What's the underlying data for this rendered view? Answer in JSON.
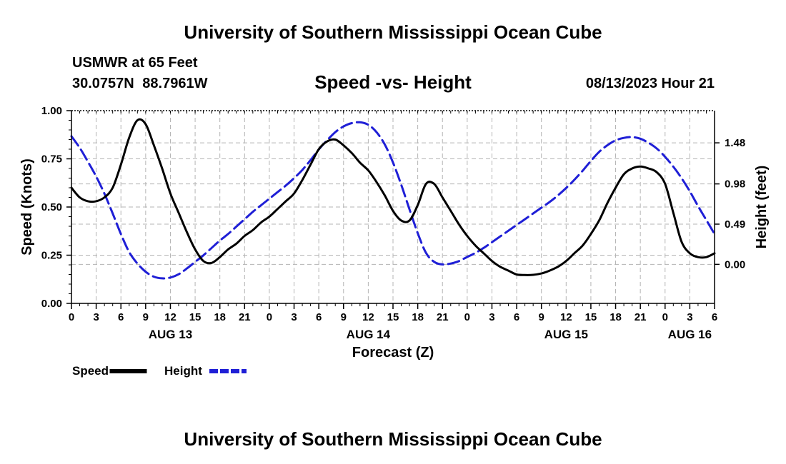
{
  "header": {
    "title": "University of Southern Mississippi Ocean Cube",
    "station": "USMWR at 65 Feet",
    "coords": "30.0757N  88.7961W",
    "plot_title": "Speed -vs- Height",
    "date": "08/13/2023 Hour 21"
  },
  "footer": {
    "title": "University of Southern Mississippi Ocean Cube"
  },
  "chart_data": {
    "type": "line",
    "xlabel": "Forecast (Z)",
    "ylabel": "Speed (Knots)",
    "y2label": "Height (feet)",
    "x_range": [
      0,
      78
    ],
    "x_ticks": [
      {
        "x": 0,
        "label": "0"
      },
      {
        "x": 3,
        "label": "3"
      },
      {
        "x": 6,
        "label": "6"
      },
      {
        "x": 9,
        "label": "9"
      },
      {
        "x": 12,
        "label": "12"
      },
      {
        "x": 15,
        "label": "15"
      },
      {
        "x": 18,
        "label": "18"
      },
      {
        "x": 21,
        "label": "21"
      },
      {
        "x": 24,
        "label": "0"
      },
      {
        "x": 27,
        "label": "3"
      },
      {
        "x": 30,
        "label": "6"
      },
      {
        "x": 33,
        "label": "9"
      },
      {
        "x": 36,
        "label": "12"
      },
      {
        "x": 39,
        "label": "15"
      },
      {
        "x": 42,
        "label": "18"
      },
      {
        "x": 45,
        "label": "21"
      },
      {
        "x": 48,
        "label": "0"
      },
      {
        "x": 51,
        "label": "3"
      },
      {
        "x": 54,
        "label": "6"
      },
      {
        "x": 57,
        "label": "9"
      },
      {
        "x": 60,
        "label": "12"
      },
      {
        "x": 63,
        "label": "15"
      },
      {
        "x": 66,
        "label": "18"
      },
      {
        "x": 69,
        "label": "21"
      },
      {
        "x": 72,
        "label": "0"
      },
      {
        "x": 75,
        "label": "3"
      },
      {
        "x": 78,
        "label": "6"
      }
    ],
    "date_labels": [
      {
        "x": 12,
        "label": "AUG 13"
      },
      {
        "x": 36,
        "label": "AUG 14"
      },
      {
        "x": 60,
        "label": "AUG 15"
      },
      {
        "x": 75,
        "label": "AUG 16"
      }
    ],
    "y_range": [
      0,
      1
    ],
    "y_ticks": [
      "0.00",
      "0.25",
      "0.50",
      "0.75",
      "1.00"
    ],
    "y2_range": [
      -0.475,
      1.872
    ],
    "y2_ticks": [
      {
        "value": 0.0,
        "label": "0.00"
      },
      {
        "value": 0.49,
        "label": "0.49"
      },
      {
        "value": 0.98,
        "label": "0.98"
      },
      {
        "value": 1.48,
        "label": "1.48"
      }
    ],
    "series": [
      {
        "name": "Speed",
        "axis": "left",
        "color": "#000000",
        "dash": "solid",
        "x": [
          0,
          1,
          2,
          3,
          4,
          5,
          6,
          7,
          8,
          9,
          10,
          11,
          12,
          13,
          14,
          15,
          16,
          17,
          18,
          19,
          20,
          21,
          22,
          23,
          24,
          25,
          26,
          27,
          28,
          29,
          30,
          31,
          32,
          33,
          34,
          35,
          36,
          37,
          38,
          39,
          40,
          41,
          42,
          43,
          44,
          45,
          46,
          47,
          48,
          49,
          50,
          51,
          52,
          53,
          54,
          55,
          56,
          57,
          58,
          59,
          60,
          61,
          62,
          63,
          64,
          65,
          66,
          67,
          68,
          69,
          70,
          71,
          72,
          73,
          74,
          75,
          76,
          77,
          78
        ],
        "values": [
          0.6,
          0.55,
          0.53,
          0.53,
          0.55,
          0.6,
          0.72,
          0.86,
          0.95,
          0.93,
          0.82,
          0.7,
          0.57,
          0.47,
          0.37,
          0.28,
          0.22,
          0.21,
          0.24,
          0.28,
          0.31,
          0.35,
          0.38,
          0.42,
          0.45,
          0.49,
          0.53,
          0.57,
          0.64,
          0.72,
          0.8,
          0.84,
          0.85,
          0.82,
          0.78,
          0.73,
          0.69,
          0.63,
          0.56,
          0.48,
          0.43,
          0.43,
          0.51,
          0.62,
          0.62,
          0.55,
          0.48,
          0.41,
          0.35,
          0.3,
          0.26,
          0.22,
          0.19,
          0.17,
          0.15,
          0.147,
          0.148,
          0.155,
          0.17,
          0.19,
          0.22,
          0.26,
          0.3,
          0.36,
          0.43,
          0.52,
          0.6,
          0.67,
          0.7,
          0.71,
          0.7,
          0.68,
          0.62,
          0.47,
          0.32,
          0.26,
          0.24,
          0.24,
          0.26
        ]
      },
      {
        "name": "Height",
        "axis": "right",
        "color": "#1f1fd6",
        "dash": "dashed",
        "x": [
          0,
          1,
          2,
          3,
          4,
          5,
          6,
          7,
          8,
          9,
          10,
          11,
          12,
          13,
          14,
          15,
          16,
          17,
          18,
          19,
          20,
          21,
          22,
          23,
          24,
          25,
          26,
          27,
          28,
          29,
          30,
          31,
          32,
          33,
          34,
          35,
          36,
          37,
          38,
          39,
          40,
          41,
          42,
          43,
          44,
          45,
          46,
          47,
          48,
          49,
          50,
          51,
          52,
          53,
          54,
          55,
          56,
          57,
          58,
          59,
          60,
          61,
          62,
          63,
          64,
          65,
          66,
          67,
          68,
          69,
          70,
          71,
          72,
          73,
          74,
          75,
          76,
          77,
          78
        ],
        "values": [
          1.56,
          1.42,
          1.25,
          1.07,
          0.86,
          0.62,
          0.37,
          0.15,
          0.01,
          -0.09,
          -0.15,
          -0.17,
          -0.16,
          -0.12,
          -0.05,
          0.03,
          0.11,
          0.2,
          0.29,
          0.37,
          0.46,
          0.55,
          0.64,
          0.72,
          0.8,
          0.88,
          0.96,
          1.05,
          1.15,
          1.27,
          1.4,
          1.51,
          1.61,
          1.68,
          1.72,
          1.73,
          1.7,
          1.61,
          1.46,
          1.24,
          0.97,
          0.67,
          0.38,
          0.14,
          0.03,
          0.0,
          0.01,
          0.04,
          0.09,
          0.14,
          0.2,
          0.27,
          0.34,
          0.41,
          0.48,
          0.55,
          0.62,
          0.69,
          0.76,
          0.84,
          0.93,
          1.03,
          1.14,
          1.26,
          1.37,
          1.45,
          1.51,
          1.54,
          1.55,
          1.53,
          1.48,
          1.41,
          1.31,
          1.19,
          1.05,
          0.89,
          0.71,
          0.54,
          0.37
        ]
      }
    ],
    "legend": [
      {
        "label": "Speed",
        "color": "#000000",
        "dash": "solid"
      },
      {
        "label": "Height",
        "color": "#1f1fd6",
        "dash": "dashed"
      }
    ],
    "grid": true,
    "legend_position": "bottom-left"
  }
}
